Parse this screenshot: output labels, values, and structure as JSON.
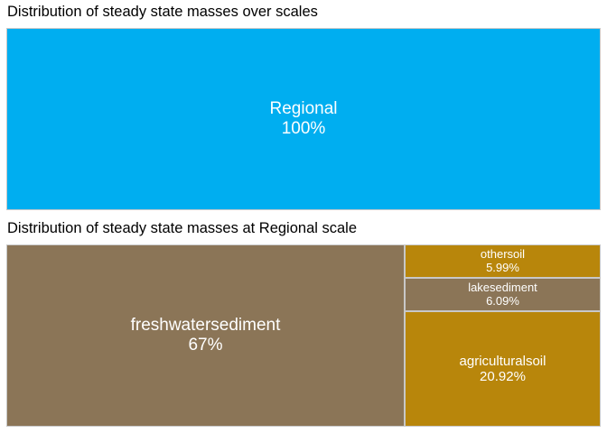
{
  "chart_data": [
    {
      "type": "treemap",
      "title": "Distribution of steady state masses over scales",
      "tiles": [
        {
          "name": "Regional",
          "label": "100%",
          "value": 100,
          "color": "#00aef0"
        }
      ]
    },
    {
      "type": "treemap",
      "title": "Distribution of steady state masses at Regional scale",
      "tiles": [
        {
          "name": "freshwatersediment",
          "label": "67%",
          "value": 67.0,
          "color": "#8b7557"
        },
        {
          "name": "agriculturalsoil",
          "label": "20.92%",
          "value": 20.92,
          "color": "#b8860b"
        },
        {
          "name": "lakesediment",
          "label": "6.09%",
          "value": 6.09,
          "color": "#8b7557"
        },
        {
          "name": "othersoil",
          "label": "5.99%",
          "value": 5.99,
          "color": "#b8860b"
        }
      ]
    }
  ]
}
